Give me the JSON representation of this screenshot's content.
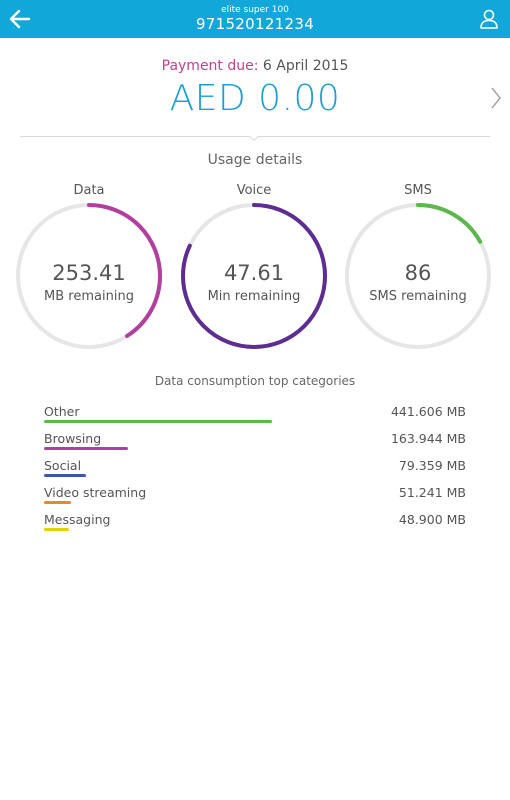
{
  "header": {
    "plan_name": "elite super 100",
    "msisdn": "971520121234",
    "back_icon": "arrow-left-icon",
    "user_icon": "user-icon"
  },
  "billing": {
    "due_label": "Payment due:",
    "due_date": "6 April 2015",
    "amount": "AED 0.00"
  },
  "usage": {
    "title": "Usage details",
    "gauges": [
      {
        "label": "Data",
        "value": "253.41",
        "unit": "MB remaining",
        "fraction": 0.41,
        "color": "#b23e9e"
      },
      {
        "label": "Voice",
        "value": "47.61",
        "unit": "Min remaining",
        "fraction": 0.82,
        "color": "#5e2d91"
      },
      {
        "label": "SMS",
        "value": "86",
        "unit": "SMS remaining",
        "fraction": 0.17,
        "color": "#5cb84a"
      }
    ]
  },
  "categories": {
    "title": "Data consumption top categories",
    "items": [
      {
        "name": "Other",
        "value": "441.606 MB",
        "fraction": 0.54,
        "color": "#5cb84a"
      },
      {
        "name": "Browsing",
        "value": "163.944 MB",
        "fraction": 0.2,
        "color": "#b23e9e"
      },
      {
        "name": "Social",
        "value": "79.359 MB",
        "fraction": 0.1,
        "color": "#3a58a8"
      },
      {
        "name": "Video streaming",
        "value": "51.241 MB",
        "fraction": 0.063,
        "color": "#e98a1c"
      },
      {
        "name": "Messaging",
        "value": "48.900 MB",
        "fraction": 0.06,
        "color": "#e6d000"
      }
    ]
  },
  "colors": {
    "accent": "#12a7d9",
    "amount": "#1a9fd0",
    "due_label": "#c0418f",
    "ring_track": "#e6e6e8"
  }
}
